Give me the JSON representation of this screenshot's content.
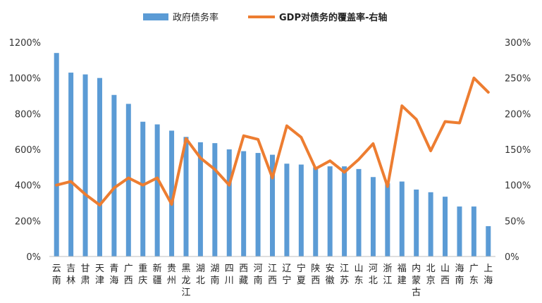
{
  "chart_data": {
    "type": "bar+line",
    "categories": [
      "云南",
      "吉林",
      "甘肃",
      "天津",
      "青海",
      "广西",
      "重庆",
      "新疆",
      "贵州",
      "黑龙江",
      "湖北",
      "湖南",
      "四川",
      "西藏",
      "河南",
      "江西",
      "辽宁",
      "宁夏",
      "陕西",
      "安徽",
      "江苏",
      "山东",
      "河北",
      "浙江",
      "福建",
      "内蒙古",
      "北京",
      "山西",
      "海南",
      "广东",
      "上海"
    ],
    "series": [
      {
        "name": "政府债务率",
        "type": "bar",
        "axis": "left",
        "values": [
          1140,
          1030,
          1020,
          1000,
          905,
          855,
          755,
          740,
          705,
          670,
          640,
          635,
          600,
          590,
          580,
          570,
          520,
          515,
          500,
          505,
          505,
          490,
          445,
          410,
          420,
          375,
          360,
          335,
          280,
          280,
          170
        ]
      },
      {
        "name": "GDP对债务的覆盖率-右轴",
        "type": "line",
        "axis": "right",
        "values": [
          100,
          105,
          87,
          72,
          96,
          110,
          100,
          110,
          73,
          165,
          138,
          122,
          100,
          169,
          164,
          110,
          183,
          167,
          123,
          134,
          118,
          136,
          158,
          98,
          211,
          192,
          148,
          189,
          187,
          250,
          230
        ]
      }
    ],
    "y_left": {
      "min": 0,
      "max": 1200,
      "step": 200,
      "unit": "%"
    },
    "y_right": {
      "min": 0,
      "max": 300,
      "step": 50,
      "unit": "%"
    },
    "legend_position": "top-center",
    "colors": {
      "bar": "#5B9BD5",
      "line": "#ED7D31",
      "axis": "#333333"
    }
  }
}
